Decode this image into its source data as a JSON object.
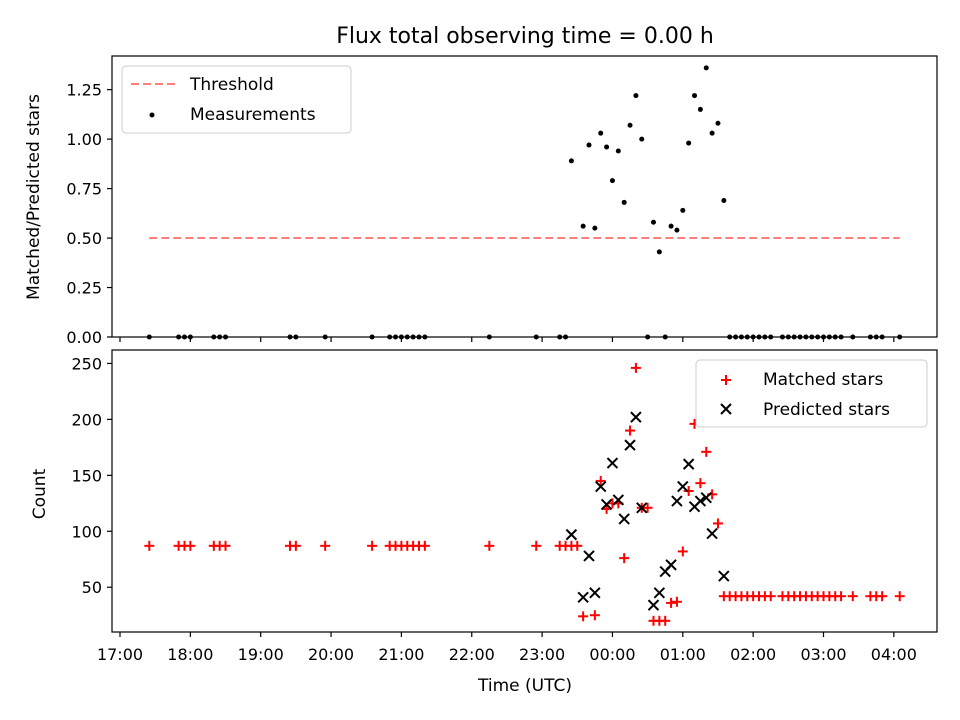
{
  "title": "Flux total observing time = 0.00 h",
  "x_axis": {
    "label": "Time (UTC)",
    "ticks": [
      {
        "hour": 17,
        "label": "17:00"
      },
      {
        "hour": 18,
        "label": "18:00"
      },
      {
        "hour": 19,
        "label": "19:00"
      },
      {
        "hour": 20,
        "label": "20:00"
      },
      {
        "hour": 21,
        "label": "21:00"
      },
      {
        "hour": 22,
        "label": "22:00"
      },
      {
        "hour": 23,
        "label": "23:00"
      },
      {
        "hour": 24,
        "label": "00:00"
      },
      {
        "hour": 25,
        "label": "01:00"
      },
      {
        "hour": 26,
        "label": "02:00"
      },
      {
        "hour": 27,
        "label": "03:00"
      },
      {
        "hour": 28,
        "label": "04:00"
      }
    ]
  },
  "colors": {
    "threshold": "#ff7f7f",
    "measurements": "#000000",
    "matched": "#ff0000",
    "predicted": "#000000"
  },
  "chart_data": [
    {
      "type": "scatter",
      "ylabel": "Matched/Predicted stars",
      "ylim": [
        0,
        1.42
      ],
      "yticks": [
        "0.00",
        "0.25",
        "0.50",
        "0.75",
        "1.00",
        "1.25"
      ],
      "legend": {
        "placement": "top-left",
        "entries": [
          "Threshold",
          "Measurements"
        ]
      },
      "threshold": {
        "name": "Threshold",
        "value": 0.5,
        "x_start": "17:25",
        "x_end": "04:05"
      },
      "series": [
        {
          "name": "Measurements",
          "points": [
            [
              "17:25",
              0
            ],
            [
              "17:50",
              0
            ],
            [
              "17:55",
              0
            ],
            [
              "18:00",
              0
            ],
            [
              "18:20",
              0
            ],
            [
              "18:25",
              0
            ],
            [
              "18:30",
              0
            ],
            [
              "19:25",
              0
            ],
            [
              "19:30",
              0
            ],
            [
              "19:55",
              0
            ],
            [
              "20:35",
              0
            ],
            [
              "20:50",
              0
            ],
            [
              "20:55",
              0
            ],
            [
              "21:00",
              0
            ],
            [
              "21:05",
              0
            ],
            [
              "21:10",
              0
            ],
            [
              "21:15",
              0
            ],
            [
              "21:20",
              0
            ],
            [
              "22:15",
              0
            ],
            [
              "22:55",
              0
            ],
            [
              "23:15",
              0
            ],
            [
              "23:20",
              0
            ],
            [
              "23:25",
              0.89
            ],
            [
              "23:35",
              0.56
            ],
            [
              "23:40",
              0.97
            ],
            [
              "23:45",
              0.55
            ],
            [
              "23:50",
              1.03
            ],
            [
              "23:55",
              0.96
            ],
            [
              "00:00",
              0.79
            ],
            [
              "00:05",
              0.94
            ],
            [
              "00:10",
              0.68
            ],
            [
              "00:15",
              1.07
            ],
            [
              "00:20",
              1.22
            ],
            [
              "00:25",
              1.0
            ],
            [
              "00:30",
              0
            ],
            [
              "00:35",
              0.58
            ],
            [
              "00:40",
              0.43
            ],
            [
              "00:45",
              0
            ],
            [
              "00:50",
              0.56
            ],
            [
              "00:55",
              0.54
            ],
            [
              "01:00",
              0.64
            ],
            [
              "01:05",
              0.98
            ],
            [
              "01:10",
              1.22
            ],
            [
              "01:15",
              1.15
            ],
            [
              "01:20",
              1.36
            ],
            [
              "01:25",
              1.03
            ],
            [
              "01:30",
              1.08
            ],
            [
              "01:35",
              0.69
            ],
            [
              "01:40",
              0
            ],
            [
              "01:45",
              0
            ],
            [
              "01:50",
              0
            ],
            [
              "01:55",
              0
            ],
            [
              "02:00",
              0
            ],
            [
              "02:05",
              0
            ],
            [
              "02:10",
              0
            ],
            [
              "02:15",
              0
            ],
            [
              "02:25",
              0
            ],
            [
              "02:30",
              0
            ],
            [
              "02:35",
              0
            ],
            [
              "02:40",
              0
            ],
            [
              "02:45",
              0
            ],
            [
              "02:50",
              0
            ],
            [
              "02:55",
              0
            ],
            [
              "03:00",
              0
            ],
            [
              "03:05",
              0
            ],
            [
              "03:10",
              0
            ],
            [
              "03:15",
              0
            ],
            [
              "03:25",
              0
            ],
            [
              "03:40",
              0
            ],
            [
              "03:45",
              0
            ],
            [
              "03:50",
              0
            ],
            [
              "04:05",
              0
            ]
          ]
        }
      ]
    },
    {
      "type": "scatter",
      "ylabel": "Count",
      "ylim": [
        10,
        262
      ],
      "yticks": [
        "50",
        "100",
        "150",
        "200",
        "250"
      ],
      "legend": {
        "placement": "top-right",
        "entries": [
          "Matched stars",
          "Predicted stars"
        ]
      },
      "series": [
        {
          "name": "Matched stars",
          "marker": "+",
          "points": [
            [
              "17:25",
              87
            ],
            [
              "17:50",
              87
            ],
            [
              "17:55",
              87
            ],
            [
              "18:00",
              87
            ],
            [
              "18:20",
              87
            ],
            [
              "18:25",
              87
            ],
            [
              "18:30",
              87
            ],
            [
              "19:25",
              87
            ],
            [
              "19:30",
              87
            ],
            [
              "19:55",
              87
            ],
            [
              "20:35",
              87
            ],
            [
              "20:50",
              87
            ],
            [
              "20:55",
              87
            ],
            [
              "21:00",
              87
            ],
            [
              "21:05",
              87
            ],
            [
              "21:10",
              87
            ],
            [
              "21:15",
              87
            ],
            [
              "21:20",
              87
            ],
            [
              "22:15",
              87
            ],
            [
              "22:55",
              87
            ],
            [
              "23:15",
              87
            ],
            [
              "23:20",
              87
            ],
            [
              "23:25",
              87
            ],
            [
              "23:30",
              87
            ],
            [
              "23:35",
              24
            ],
            [
              "23:45",
              25
            ],
            [
              "23:50",
              145
            ],
            [
              "23:55",
              120
            ],
            [
              "00:00",
              125
            ],
            [
              "00:05",
              125
            ],
            [
              "00:10",
              76
            ],
            [
              "00:15",
              190
            ],
            [
              "00:20",
              246
            ],
            [
              "00:25",
              121
            ],
            [
              "00:30",
              121
            ],
            [
              "00:35",
              20
            ],
            [
              "00:40",
              20
            ],
            [
              "00:45",
              20
            ],
            [
              "00:50",
              36
            ],
            [
              "00:55",
              37
            ],
            [
              "01:00",
              82
            ],
            [
              "01:05",
              136
            ],
            [
              "01:10",
              196
            ],
            [
              "01:15",
              143
            ],
            [
              "01:20",
              171
            ],
            [
              "01:25",
              133
            ],
            [
              "01:30",
              107
            ],
            [
              "01:35",
              42
            ],
            [
              "01:40",
              42
            ],
            [
              "01:45",
              42
            ],
            [
              "01:50",
              42
            ],
            [
              "01:55",
              42
            ],
            [
              "02:00",
              42
            ],
            [
              "02:05",
              42
            ],
            [
              "02:10",
              42
            ],
            [
              "02:15",
              42
            ],
            [
              "02:25",
              42
            ],
            [
              "02:30",
              42
            ],
            [
              "02:35",
              42
            ],
            [
              "02:40",
              42
            ],
            [
              "02:45",
              42
            ],
            [
              "02:50",
              42
            ],
            [
              "02:55",
              42
            ],
            [
              "03:00",
              42
            ],
            [
              "03:05",
              42
            ],
            [
              "03:10",
              42
            ],
            [
              "03:15",
              42
            ],
            [
              "03:25",
              42
            ],
            [
              "03:40",
              42
            ],
            [
              "03:45",
              42
            ],
            [
              "03:50",
              42
            ],
            [
              "04:05",
              42
            ]
          ]
        },
        {
          "name": "Predicted stars",
          "marker": "x",
          "points": [
            [
              "23:25",
              97
            ],
            [
              "23:35",
              41
            ],
            [
              "23:40",
              78
            ],
            [
              "23:45",
              45
            ],
            [
              "23:50",
              140
            ],
            [
              "23:55",
              124
            ],
            [
              "00:00",
              161
            ],
            [
              "00:05",
              128
            ],
            [
              "00:10",
              111
            ],
            [
              "00:15",
              177
            ],
            [
              "00:20",
              202
            ],
            [
              "00:25",
              121
            ],
            [
              "00:35",
              34
            ],
            [
              "00:40",
              45
            ],
            [
              "00:45",
              64
            ],
            [
              "00:50",
              70
            ],
            [
              "00:55",
              127
            ],
            [
              "01:00",
              140
            ],
            [
              "01:05",
              160
            ],
            [
              "01:10",
              122
            ],
            [
              "01:15",
              127
            ],
            [
              "01:20",
              130
            ],
            [
              "01:25",
              98
            ],
            [
              "01:35",
              60
            ]
          ]
        }
      ]
    }
  ]
}
